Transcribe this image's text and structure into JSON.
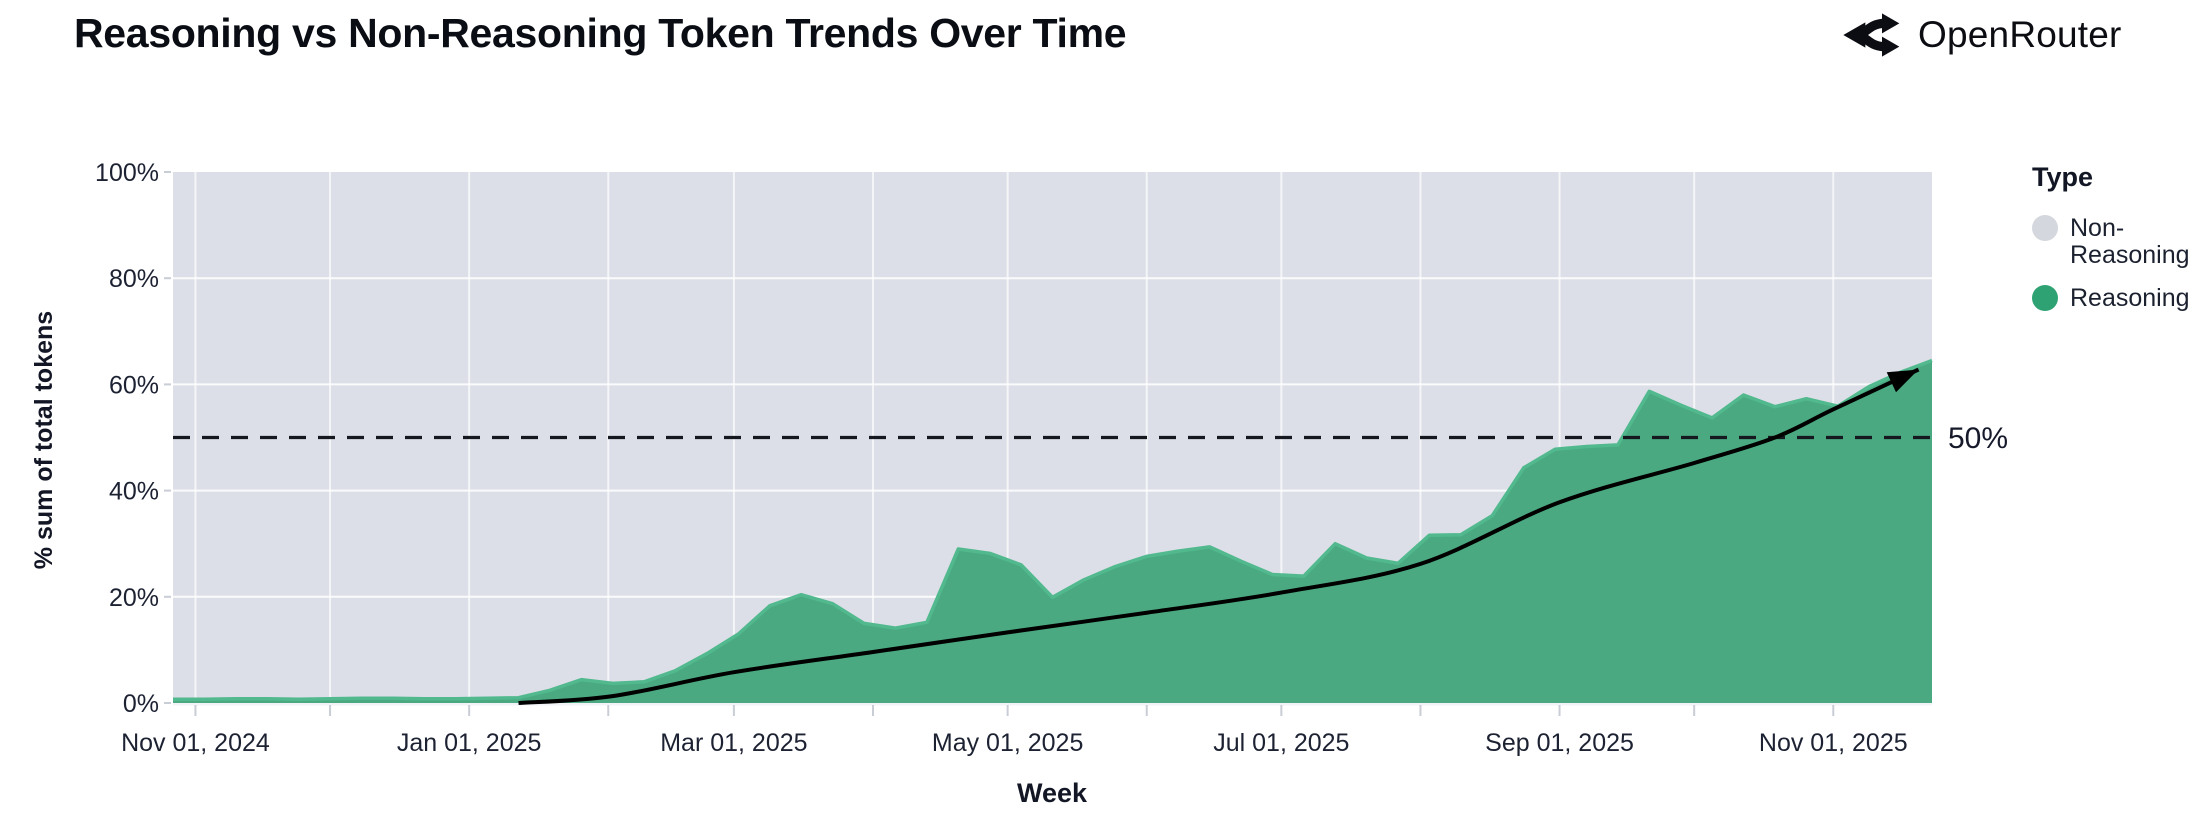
{
  "header": {
    "title": "Reasoning vs Non-Reasoning Token Trends Over Time",
    "logo_text": "OpenRouter"
  },
  "legend": {
    "title": "Type",
    "items": [
      {
        "label": "Non-Reasoning",
        "color": "#d4d7de"
      },
      {
        "label": "Reasoning",
        "color": "#2fa273"
      }
    ]
  },
  "chart_data": {
    "type": "area",
    "stacked_percent": true,
    "title": "Reasoning vs Non-Reasoning Token Trends Over Time",
    "xlabel": "Week",
    "ylabel": "% sum of total tokens",
    "x_range": [
      "2024-10-27",
      "2025-11-23"
    ],
    "ylim": [
      0,
      100
    ],
    "grid": true,
    "legend_position": "right",
    "colors": {
      "plot_bg": "#dcdfe7",
      "grid": "#ffffff",
      "axis_tick": "#c9cdd5",
      "area_fill": "#4aa980",
      "area_stroke": "#52b98e",
      "dashed_line": "#15181f",
      "trend_line": "#000000"
    },
    "y_ticks": [
      {
        "value": 0,
        "label": "0%"
      },
      {
        "value": 20,
        "label": "20%"
      },
      {
        "value": 40,
        "label": "40%"
      },
      {
        "value": 60,
        "label": "60%"
      },
      {
        "value": 80,
        "label": "80%"
      },
      {
        "value": 100,
        "label": "100%"
      }
    ],
    "x_ticks": [
      {
        "date": "2024-11-01",
        "label": "Nov 01, 2024"
      },
      {
        "date": "2025-01-01",
        "label": "Jan 01, 2025"
      },
      {
        "date": "2025-03-01",
        "label": "Mar 01, 2025"
      },
      {
        "date": "2025-05-01",
        "label": "May 01, 2025"
      },
      {
        "date": "2025-07-01",
        "label": "Jul 01, 2025"
      },
      {
        "date": "2025-09-01",
        "label": "Sep 01, 2025"
      },
      {
        "date": "2025-11-01",
        "label": "Nov 01, 2025"
      }
    ],
    "x_minor_ticks": [
      "2024-12-01",
      "2025-02-01",
      "2025-04-01",
      "2025-06-01",
      "2025-08-01",
      "2025-10-01"
    ],
    "series": [
      {
        "name": "Reasoning",
        "unit": "% of total tokens",
        "points": [
          [
            "2024-10-27",
            0.7
          ],
          [
            "2024-11-03",
            0.7
          ],
          [
            "2024-11-10",
            0.8
          ],
          [
            "2024-11-17",
            0.8
          ],
          [
            "2024-11-24",
            0.7
          ],
          [
            "2024-12-01",
            0.8
          ],
          [
            "2024-12-08",
            0.9
          ],
          [
            "2024-12-15",
            0.9
          ],
          [
            "2024-12-22",
            0.8
          ],
          [
            "2024-12-29",
            0.8
          ],
          [
            "2025-01-05",
            0.9
          ],
          [
            "2025-01-12",
            1.0
          ],
          [
            "2025-01-19",
            2.4
          ],
          [
            "2025-01-26",
            4.4
          ],
          [
            "2025-02-02",
            3.7
          ],
          [
            "2025-02-09",
            4.0
          ],
          [
            "2025-02-16",
            6.1
          ],
          [
            "2025-02-23",
            9.3
          ],
          [
            "2025-03-02",
            13.0
          ],
          [
            "2025-03-09",
            18.3
          ],
          [
            "2025-03-16",
            20.4
          ],
          [
            "2025-03-23",
            18.7
          ],
          [
            "2025-03-30",
            15.0
          ],
          [
            "2025-04-06",
            14.1
          ],
          [
            "2025-04-13",
            15.2
          ],
          [
            "2025-04-20",
            29.0
          ],
          [
            "2025-04-27",
            28.2
          ],
          [
            "2025-05-04",
            26.0
          ],
          [
            "2025-05-11",
            19.9
          ],
          [
            "2025-05-18",
            23.2
          ],
          [
            "2025-05-25",
            25.7
          ],
          [
            "2025-06-01",
            27.6
          ],
          [
            "2025-06-08",
            28.6
          ],
          [
            "2025-06-15",
            29.4
          ],
          [
            "2025-06-22",
            26.7
          ],
          [
            "2025-06-29",
            24.2
          ],
          [
            "2025-07-06",
            23.9
          ],
          [
            "2025-07-13",
            30.0
          ],
          [
            "2025-07-20",
            27.3
          ],
          [
            "2025-07-27",
            26.3
          ],
          [
            "2025-08-03",
            31.6
          ],
          [
            "2025-08-10",
            31.7
          ],
          [
            "2025-08-17",
            35.3
          ],
          [
            "2025-08-24",
            44.3
          ],
          [
            "2025-08-31",
            47.8
          ],
          [
            "2025-09-07",
            48.3
          ],
          [
            "2025-09-14",
            48.6
          ],
          [
            "2025-09-21",
            58.7
          ],
          [
            "2025-09-28",
            56.1
          ],
          [
            "2025-10-05",
            53.7
          ],
          [
            "2025-10-12",
            58.0
          ],
          [
            "2025-10-19",
            55.8
          ],
          [
            "2025-10-26",
            57.3
          ],
          [
            "2025-11-02",
            55.9
          ],
          [
            "2025-11-09",
            59.6
          ],
          [
            "2025-11-16",
            62.3
          ],
          [
            "2025-11-23",
            64.5
          ]
        ]
      },
      {
        "name": "Non-Reasoning",
        "note": "remainder of 100% shown as gray background"
      }
    ],
    "annotations": {
      "dashed_line": {
        "value": 50,
        "label": "50%"
      },
      "trend_arrow": {
        "points": [
          [
            "2025-01-12",
            0
          ],
          [
            "2025-02-02",
            1.3
          ],
          [
            "2025-03-01",
            5.8
          ],
          [
            "2025-04-01",
            9.6
          ],
          [
            "2025-05-01",
            13.3
          ],
          [
            "2025-06-01",
            17.0
          ],
          [
            "2025-07-01",
            20.8
          ],
          [
            "2025-08-01",
            26.2
          ],
          [
            "2025-09-01",
            37.8
          ],
          [
            "2025-10-01",
            45.2
          ],
          [
            "2025-10-19",
            50.0
          ],
          [
            "2025-11-01",
            55.3
          ],
          [
            "2025-11-20",
            62.8
          ]
        ]
      }
    }
  }
}
